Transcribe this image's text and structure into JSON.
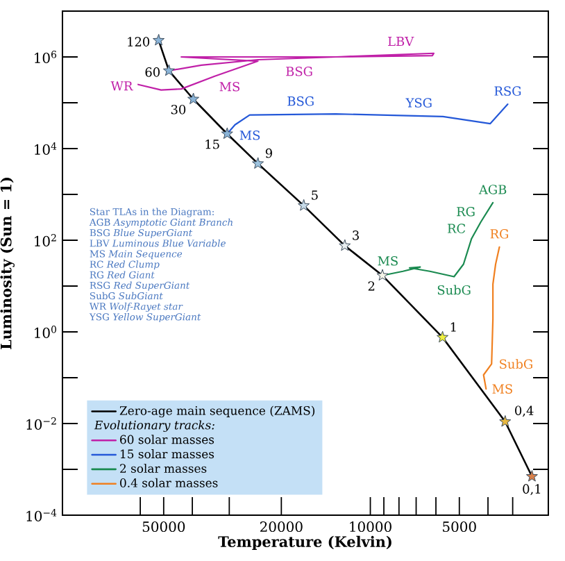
{
  "chart_data": {
    "type": "line",
    "xlabel": "Temperature (Kelvin)",
    "ylabel": "Luminosity (Sun = 1)",
    "legend_title": "Evolutionary tracks:",
    "log": "xy",
    "legend": "bottom left",
    "xlim": [
      110000,
      2500
    ],
    "ylim": [
      0.0001,
      10000000
    ],
    "xticks": [
      {
        "value": 60000,
        "label": null
      },
      50000,
      {
        "value": 40000,
        "label": null
      },
      {
        "value": 30000,
        "label": null
      },
      20000,
      10000,
      {
        "value": 9000,
        "label": null
      },
      {
        "value": 8000,
        "label": null
      },
      {
        "value": 7000,
        "label": null
      },
      {
        "value": 6000,
        "label": null
      },
      5000,
      {
        "value": 4000,
        "label": null
      },
      {
        "value": 3300,
        "label": null
      }
    ],
    "yticks": [
      {
        "value": 0.0001,
        "label": "10$^{−4}$"
      },
      {
        "value": 0.001,
        "label": null
      },
      {
        "value": 0.01,
        "label": "10$^{−2}$"
      },
      {
        "value": 0.1,
        "label": null
      },
      {
        "value": 1,
        "label": "10$^{0}$"
      },
      {
        "value": 10,
        "label": null
      },
      {
        "value": 100,
        "label": "10$^{2}$"
      },
      {
        "value": 1000,
        "label": null
      },
      {
        "value": 10000,
        "label": "10$^{4}$"
      },
      {
        "value": 100000,
        "label": null
      },
      {
        "value": 1000000,
        "label": "10$^{6}$"
      }
    ],
    "series": [
      {
        "name": "Zero-age main sequence (ZAMS)",
        "color": "#000000",
        "marker": "star",
        "x": [
          52000,
          48000,
          39700,
          30500,
          24000,
          16800,
          12200,
          9100,
          5700,
          3500,
          2840
        ],
        "values": [
          2300000,
          500000,
          120000,
          21000,
          4700,
          570,
          76,
          17,
          0.76,
          0.011,
          0.0007
        ],
        "colors": [
          "#8ab4d8",
          "#8ab4d8",
          "#8ab4d8",
          "#8ab4d8",
          "#9ec4e0",
          "#c8dcea",
          "#e8eef0",
          "#f4f4e8",
          "#f0f040",
          "#e8b840",
          "#d8804a"
        ]
      },
      {
        "name": "60 solar masses",
        "color": "#c020a8",
        "marker": "none",
        "x": [
          48000,
          37300,
          24000,
          13100,
          6100,
          6170,
          13800,
          43600,
          24000,
          33600,
          43600,
          51000,
          61000
        ],
        "values": [
          500000,
          660000,
          870000,
          1000000,
          1200000,
          1070000,
          1000000,
          1000000,
          810000,
          380000,
          200000,
          190000,
          250000
        ]
      },
      {
        "name": "15 solar masses",
        "color": "#2458d8",
        "marker": "none",
        "x": [
          30500,
          28700,
          25600,
          13100,
          5680,
          3930,
          3430
        ],
        "values": [
          21000,
          33000,
          54000,
          57000,
          50000,
          35000,
          93000
        ]
      },
      {
        "name": "2 solar masses",
        "color": "#1a8a50",
        "marker": "none",
        "x": [
          9100,
          7760,
          6780,
          7370,
          6290,
          5210,
          4840,
          4550,
          4230,
          3850
        ],
        "values": [
          17,
          21,
          26,
          25,
          21,
          16,
          30,
          107,
          250,
          660
        ]
      },
      {
        "name": "0.4 solar masses",
        "color": "#f08020",
        "marker": "none",
        "x": [
          4060,
          4140,
          3890,
          3850,
          3850,
          3770,
          3660
        ],
        "values": [
          0.057,
          0.115,
          0.2,
          1.9,
          11,
          30,
          71
        ]
      }
    ],
    "annotations": [
      "Star TLAs in the Diagram:",
      "AGB *Asymptotic Giant Branch*",
      "BSG *Blue SuperGiant*",
      "LBV *Luminous Blue Variable*",
      "MS *Main Sequence*",
      "RC *Red Clump*",
      "RG *Red Giant*",
      "RSG *Red SuperGiant*",
      "SubG *SubGiant*",
      "WR *Wolf-Rayet star*",
      "YSG *Yellow SuperGiant*",
      {
        "text": "120",
        "x": 52000,
        "y": 2300000
      },
      {
        "text": "60",
        "x": 48000,
        "y": 500000
      },
      {
        "text": "30",
        "x": 39700,
        "y": 120000
      },
      {
        "text": "15",
        "x": 30500,
        "y": 21000
      },
      {
        "text": "9",
        "x": 24000,
        "y": 4700
      },
      {
        "text": "5",
        "x": 16800,
        "y": 570
      },
      {
        "text": "3",
        "x": 12200,
        "y": 76
      },
      {
        "text": "2",
        "x": 9100,
        "y": 17
      },
      {
        "text": "1",
        "x": 5700,
        "y": 0.76
      },
      {
        "text": "0,4",
        "x": 3500,
        "y": 0.011
      },
      {
        "text": "0,1",
        "x": 2840,
        "y": 0.0007
      },
      {
        "text": "LBV",
        "x": 7900,
        "y": 1130000
      },
      {
        "text": "MS",
        "x": 33600,
        "y": 380000
      },
      {
        "text": "BSG",
        "x": 17400,
        "y": 940000
      },
      {
        "text": "WR",
        "x": 61000,
        "y": 250000
      },
      {
        "text": "BSG",
        "x": 17200,
        "y": 56000
      },
      {
        "text": "YSG",
        "x": 6840,
        "y": 51500
      },
      {
        "text": "RSG",
        "x": 3430,
        "y": 93000
      },
      {
        "text": "MS",
        "x": 28700,
        "y": 33000
      },
      {
        "text": "AGB",
        "x": 3850,
        "y": 660
      },
      {
        "text": "RG",
        "x": 4230,
        "y": 250
      },
      {
        "text": "RC",
        "x": 4550,
        "y": 107
      },
      {
        "text": "MS",
        "x": 7760,
        "y": 21
      },
      {
        "text": "SubG",
        "x": 5210,
        "y": 16
      },
      {
        "text": "RG",
        "x": 3660,
        "y": 71
      },
      {
        "text": "SubG",
        "x": 3890,
        "y": 0.2
      },
      {
        "text": "MS",
        "x": 4060,
        "y": 0.057
      }
    ]
  }
}
